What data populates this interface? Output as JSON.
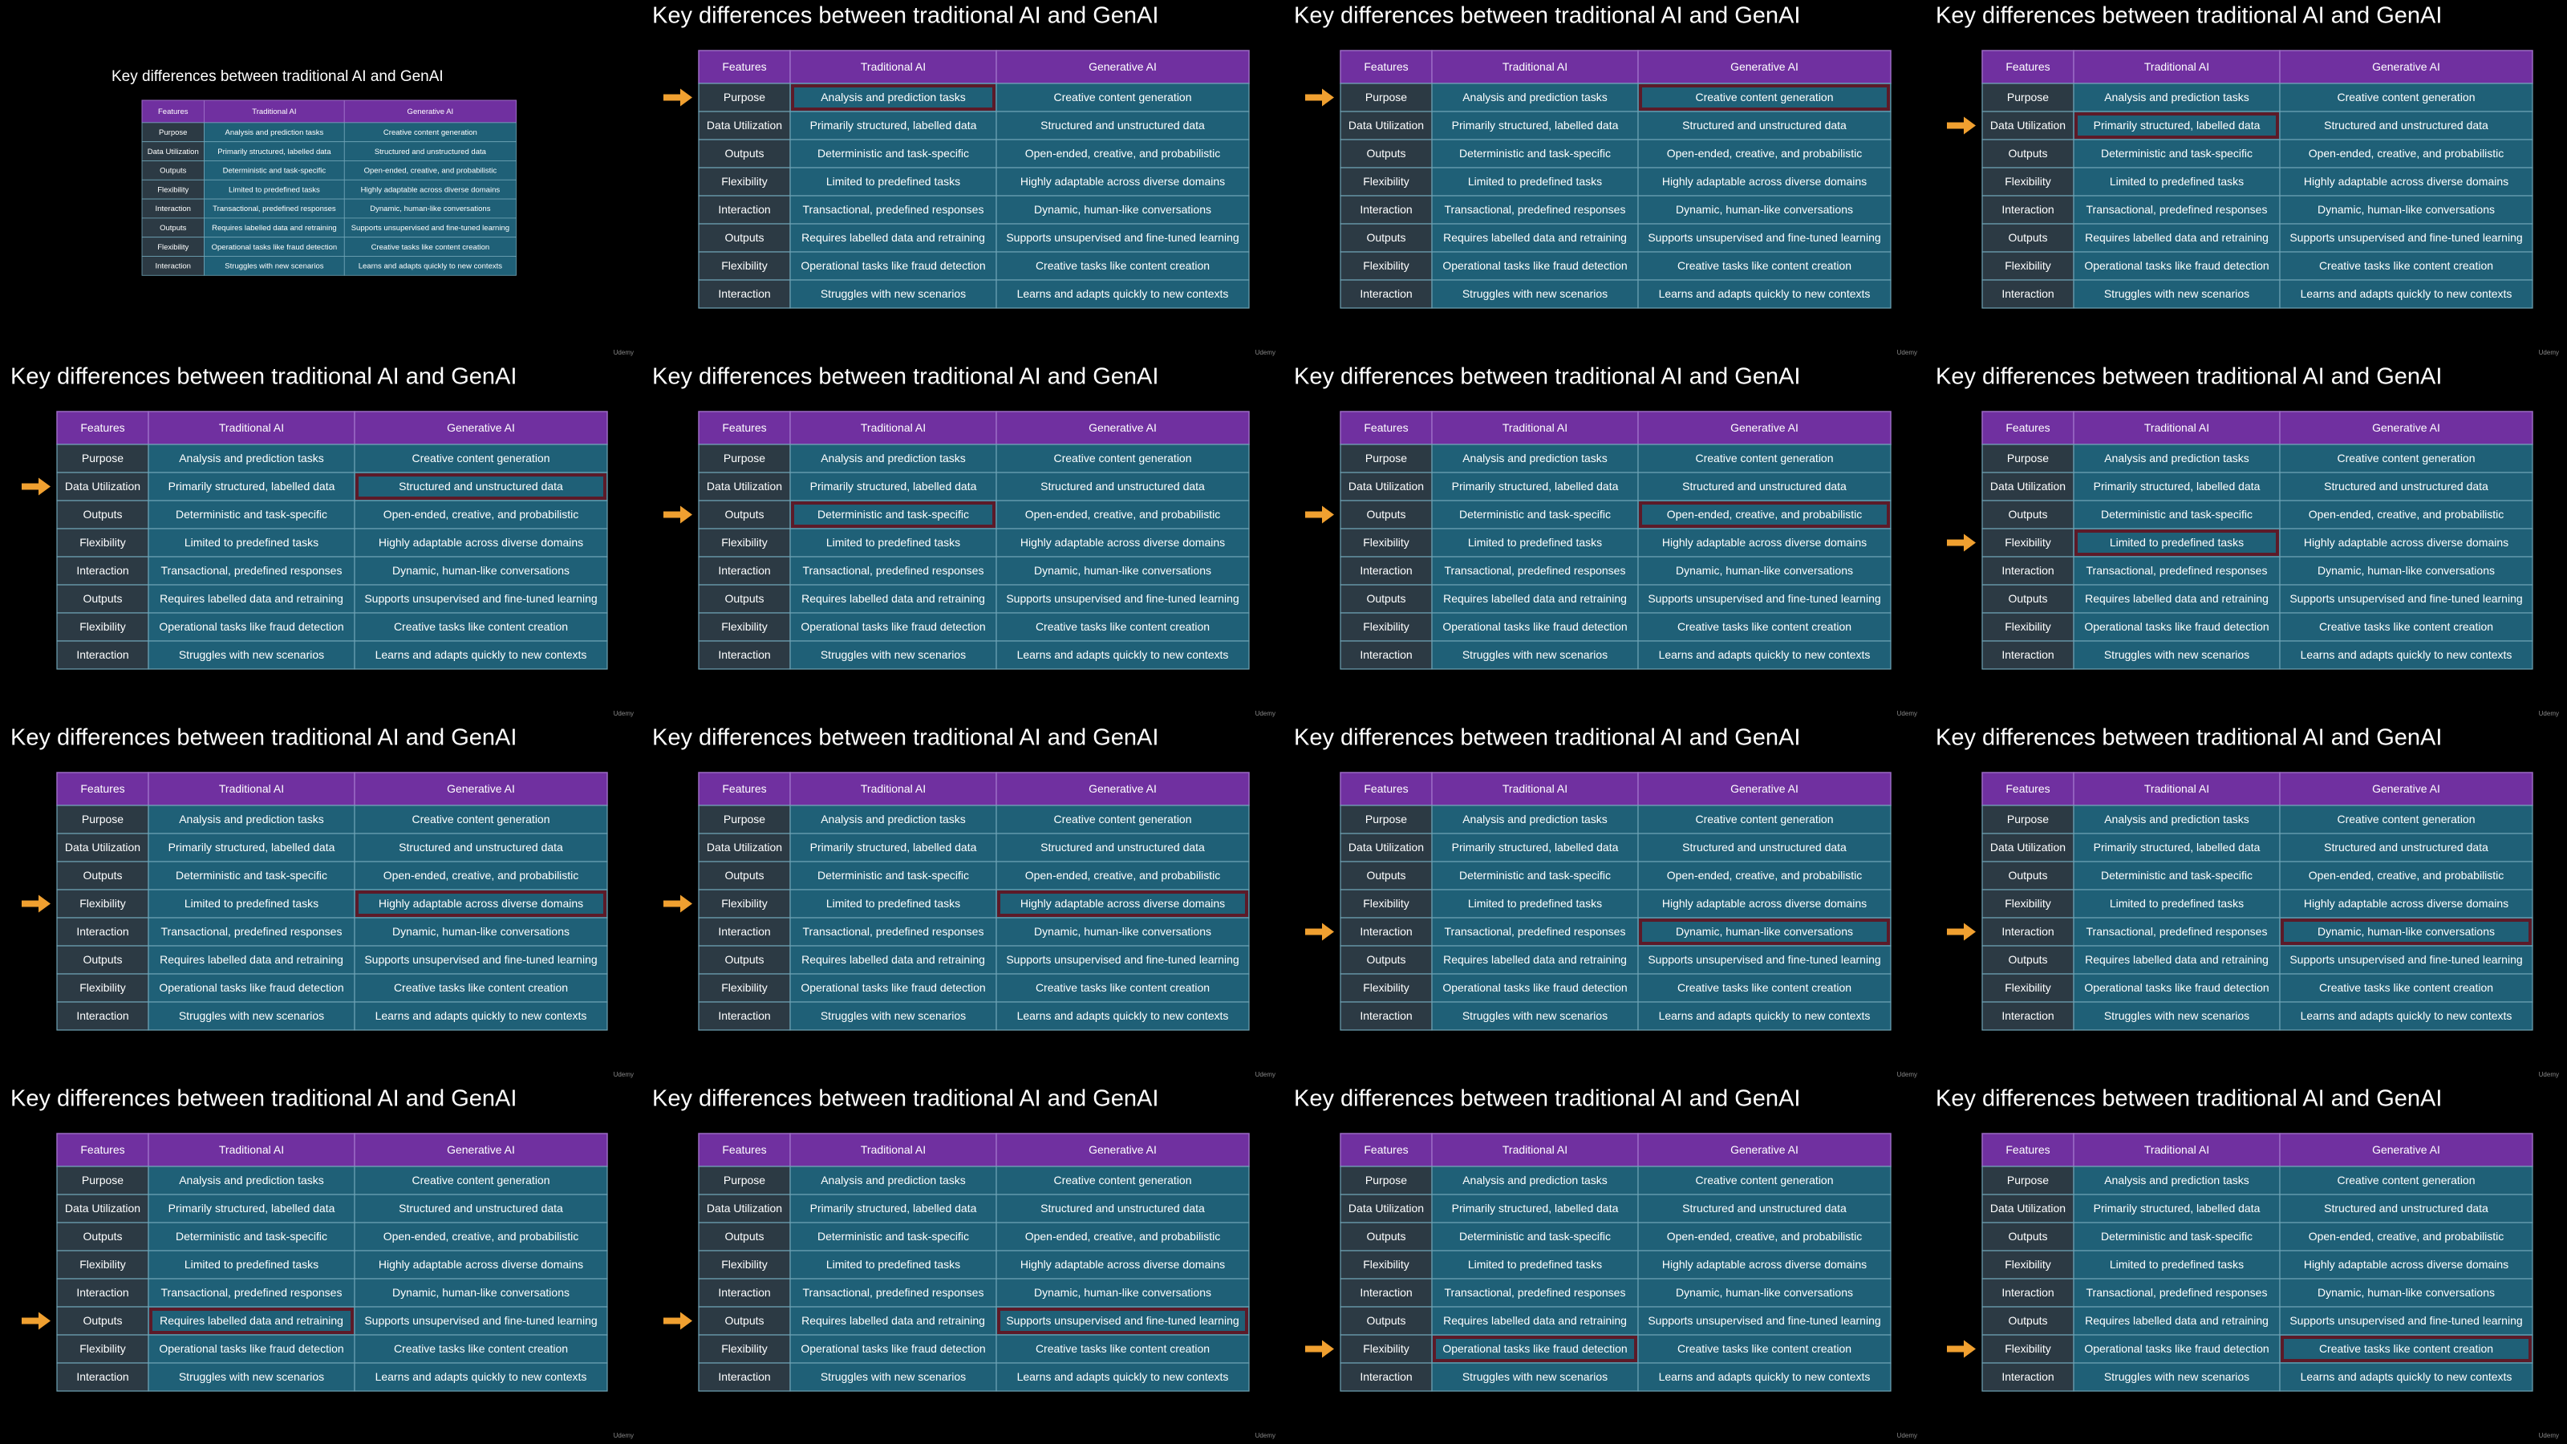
{
  "title": "Key differences between traditional AI and GenAI",
  "watermark": "Udemy",
  "table": {
    "header": [
      "Features",
      "Traditional AI",
      "Generative AI"
    ],
    "rows": [
      [
        "Purpose",
        "Analysis and prediction tasks",
        "Creative content generation"
      ],
      [
        "Data Utilization",
        "Primarily structured, labelled data",
        "Structured and unstructured data"
      ],
      [
        "Outputs",
        "Deterministic and task-specific",
        "Open-ended, creative, and probabilistic"
      ],
      [
        "Flexibility",
        "Limited to predefined tasks",
        "Highly adaptable across diverse domains"
      ],
      [
        "Interaction",
        "Transactional, predefined responses",
        "Dynamic, human-like conversations"
      ],
      [
        "Outputs",
        "Requires labelled data and retraining",
        "Supports unsupervised and fine-tuned learning"
      ],
      [
        "Flexibility",
        "Operational tasks like fraud detection",
        "Creative tasks like content creation"
      ],
      [
        "Interaction",
        "Struggles with new scenarios",
        "Learns and adapts quickly to new contexts"
      ]
    ]
  },
  "slides": [
    {
      "arrow_row": null,
      "highlight_col": null
    },
    {
      "arrow_row": 0,
      "highlight_col": 1
    },
    {
      "arrow_row": 0,
      "highlight_col": 2
    },
    {
      "arrow_row": 1,
      "highlight_col": 1
    },
    {
      "arrow_row": 1,
      "highlight_col": 2
    },
    {
      "arrow_row": 2,
      "highlight_col": 1
    },
    {
      "arrow_row": 2,
      "highlight_col": 2
    },
    {
      "arrow_row": 3,
      "highlight_col": 1
    },
    {
      "arrow_row": 3,
      "highlight_col": 2
    },
    {
      "arrow_row": 3,
      "highlight_col": 2
    },
    {
      "arrow_row": 4,
      "highlight_col": 2
    },
    {
      "arrow_row": 4,
      "highlight_col": 2
    },
    {
      "arrow_row": 5,
      "highlight_col": 1
    },
    {
      "arrow_row": 5,
      "highlight_col": 2
    },
    {
      "arrow_row": 6,
      "highlight_col": 1
    },
    {
      "arrow_row": 6,
      "highlight_col": 2
    }
  ]
}
